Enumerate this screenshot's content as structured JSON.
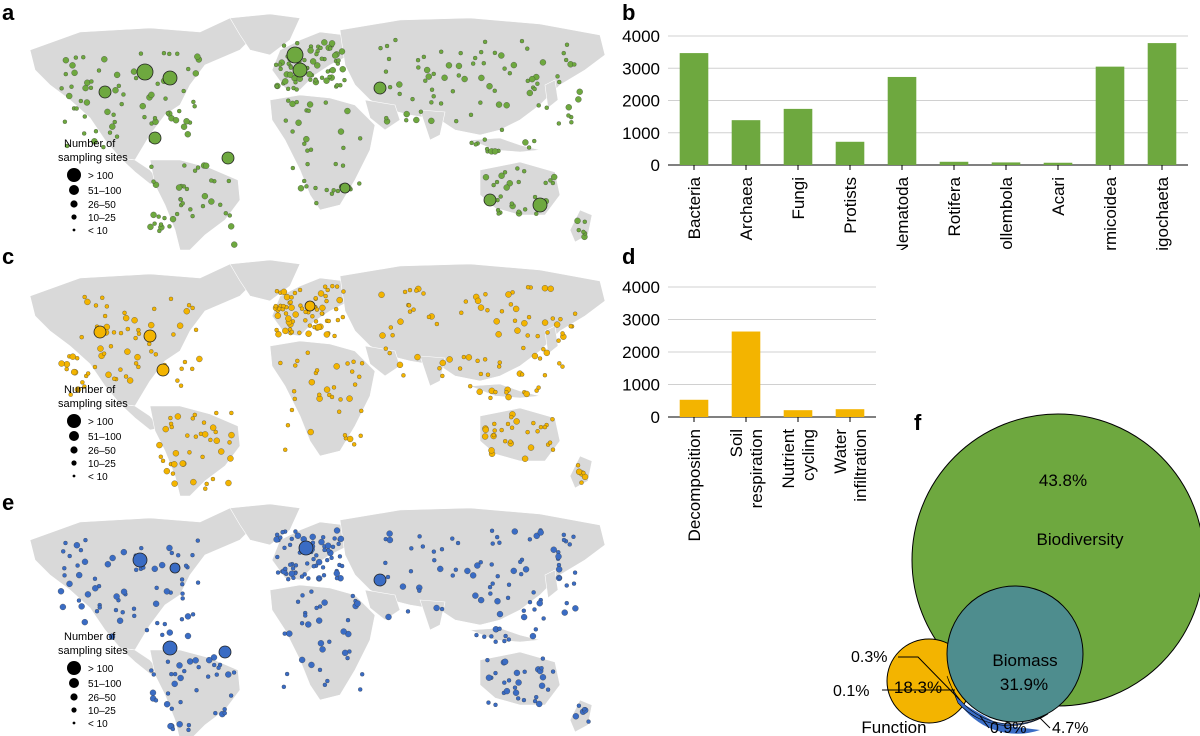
{
  "panels": {
    "a": "a",
    "b": "b",
    "c": "c",
    "d": "d",
    "e": "e",
    "f": "f"
  },
  "legend": {
    "title_line1": "Number of",
    "title_line2": "sampling sites",
    "classes": [
      "> 100",
      "51–100",
      "26–50",
      "10–25",
      "< 10"
    ]
  },
  "colors": {
    "land": "#d9d9d9",
    "green": "#6ea83f",
    "orange": "#f3b400",
    "blue": "#3a6cc4",
    "teal": "#4e8d8e",
    "grid": "#d0d0d0"
  },
  "chart_data": [
    {
      "panel": "b",
      "type": "bar",
      "categories": [
        "Bacteria",
        "Archaea",
        "Fungi",
        "Protists",
        "Nematoda",
        "Rotifera",
        "Collembola",
        "Acari",
        "Formicoidea",
        "Oligochaeta"
      ],
      "values": [
        3470,
        1390,
        1740,
        720,
        2730,
        100,
        80,
        70,
        3050,
        3780
      ],
      "ylim": [
        0,
        4000
      ],
      "yticks": [
        "0",
        "1000",
        "2000",
        "3000",
        "4000"
      ],
      "color": "#6ea83f",
      "grid": true
    },
    {
      "panel": "d",
      "type": "bar",
      "categories": [
        "Decomposition",
        "Soil respiration",
        "Nutrient cycling",
        "Water infiltration"
      ],
      "category_lines": [
        [
          "Decomposition"
        ],
        [
          "Soil",
          "respiration"
        ],
        [
          "Nutrient",
          "cycling"
        ],
        [
          "Water",
          "infiltration"
        ]
      ],
      "values": [
        530,
        2630,
        210,
        240
      ],
      "ylim": [
        0,
        4000
      ],
      "yticks": [
        "0",
        "1000",
        "2000",
        "3000",
        "4000"
      ],
      "color": "#f3b400",
      "grid": true
    },
    {
      "panel": "f",
      "type": "venn",
      "sets": [
        {
          "name": "Biodiversity",
          "value_label": "43.8%"
        },
        {
          "name": "Biomass",
          "value_label": "31.9%"
        },
        {
          "name": "Function",
          "value_label": "18.3%"
        }
      ],
      "overlap_labels": [
        "0.3%",
        "0.1%",
        "0.9%",
        "4.7%"
      ]
    }
  ]
}
